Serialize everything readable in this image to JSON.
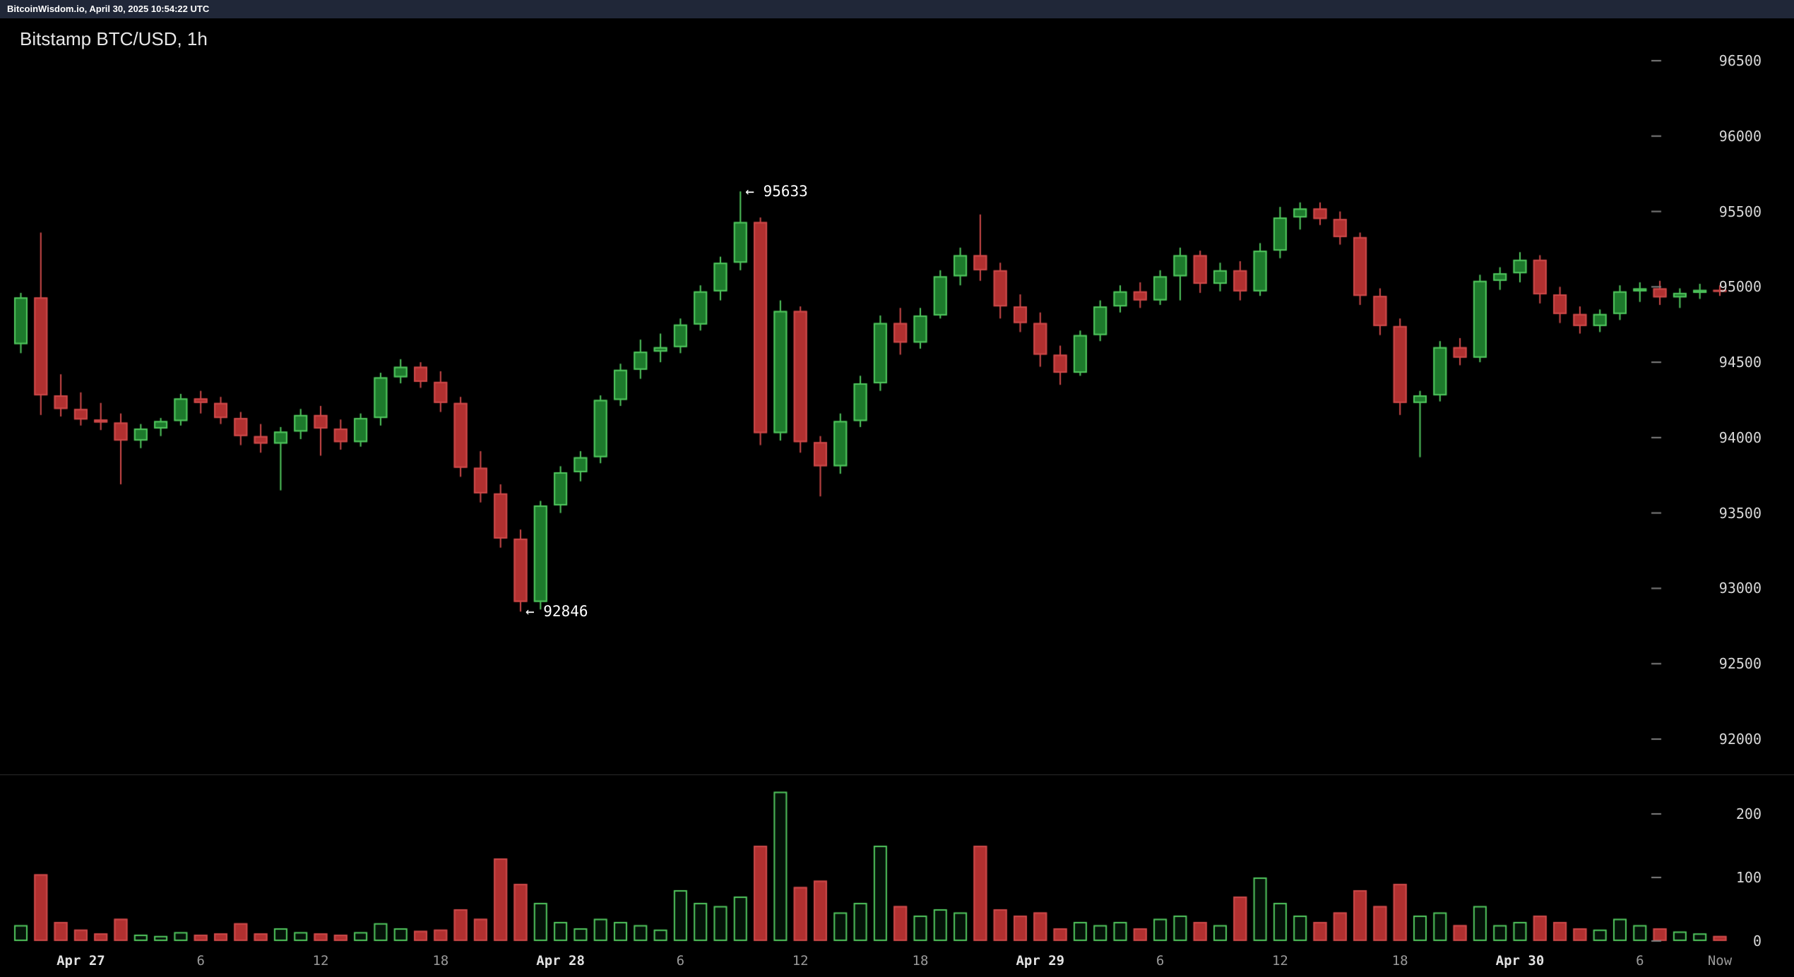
{
  "header": {
    "topbar_text": "BitcoinWisdom.io, April 30, 2025 10:54:22 UTC"
  },
  "chart": {
    "title": "Bitstamp BTC/USD, 1h",
    "now_label": "Now"
  },
  "colors": {
    "background": "#000000",
    "topbar_bg": "#202738",
    "up_border": "#52c95f",
    "up_fill": "#1d7a2c",
    "down_border": "#cf4a4a",
    "down_fill": "#b13030",
    "vol_up_fill": "#041208",
    "tick_dash": "#808080",
    "divider": "#2e2e2e",
    "axis_text": "#d8d8d8",
    "annotation_text": "#ffffff"
  },
  "chart_data": {
    "type": "candlestick",
    "exchange": "Bitstamp",
    "pair": "BTC/USD",
    "interval": "1h",
    "price_axis_ticks": [
      96500,
      96000,
      95500,
      95000,
      94500,
      94000,
      93500,
      93000,
      92500,
      92000
    ],
    "volume_axis_ticks": [
      200,
      100,
      0
    ],
    "x_axis_ticks": [
      {
        "i": 3,
        "label": "Apr 27",
        "kind": "date"
      },
      {
        "i": 9,
        "label": "6",
        "kind": "hour"
      },
      {
        "i": 15,
        "label": "12",
        "kind": "hour"
      },
      {
        "i": 21,
        "label": "18",
        "kind": "hour"
      },
      {
        "i": 27,
        "label": "Apr 28",
        "kind": "date"
      },
      {
        "i": 33,
        "label": "6",
        "kind": "hour"
      },
      {
        "i": 39,
        "label": "12",
        "kind": "hour"
      },
      {
        "i": 45,
        "label": "18",
        "kind": "hour"
      },
      {
        "i": 51,
        "label": "Apr 29",
        "kind": "date"
      },
      {
        "i": 57,
        "label": "6",
        "kind": "hour"
      },
      {
        "i": 63,
        "label": "12",
        "kind": "hour"
      },
      {
        "i": 69,
        "label": "18",
        "kind": "hour"
      },
      {
        "i": 75,
        "label": "Apr 30",
        "kind": "date"
      },
      {
        "i": 81,
        "label": "6",
        "kind": "hour"
      }
    ],
    "annotations": [
      {
        "i": 36,
        "price": 95633,
        "text": "← 95633"
      },
      {
        "i": 25,
        "price": 92846,
        "text": "← 92846"
      }
    ],
    "columns": [
      "time",
      "open",
      "high",
      "low",
      "close",
      "volume"
    ],
    "candles": [
      [
        "04-26 21",
        94620,
        94960,
        94560,
        94930,
        25
      ],
      [
        "04-26 22",
        94930,
        95360,
        94150,
        94280,
        105
      ],
      [
        "04-26 23",
        94280,
        94420,
        94140,
        94190,
        30
      ],
      [
        "04-27 00",
        94190,
        94300,
        94080,
        94120,
        18
      ],
      [
        "04-27 01",
        94120,
        94230,
        94050,
        94100,
        12
      ],
      [
        "04-27 02",
        94100,
        94160,
        93690,
        93980,
        35
      ],
      [
        "04-27 03",
        93980,
        94090,
        93930,
        94060,
        10
      ],
      [
        "04-27 04",
        94060,
        94130,
        94010,
        94110,
        8
      ],
      [
        "04-27 05",
        94110,
        94290,
        94080,
        94260,
        14
      ],
      [
        "04-27 06",
        94260,
        94310,
        94160,
        94230,
        10
      ],
      [
        "04-27 07",
        94230,
        94270,
        94090,
        94130,
        12
      ],
      [
        "04-27 08",
        94130,
        94170,
        93950,
        94010,
        28
      ],
      [
        "04-27 09",
        94010,
        94090,
        93900,
        93960,
        12
      ],
      [
        "04-27 10",
        93960,
        94070,
        93650,
        94040,
        20
      ],
      [
        "04-27 11",
        94040,
        94190,
        93990,
        94150,
        14
      ],
      [
        "04-27 12",
        94150,
        94210,
        93880,
        94060,
        12
      ],
      [
        "04-27 13",
        94060,
        94120,
        93920,
        93970,
        10
      ],
      [
        "04-27 14",
        93970,
        94160,
        93940,
        94130,
        14
      ],
      [
        "04-27 15",
        94130,
        94430,
        94080,
        94400,
        28
      ],
      [
        "04-27 16",
        94400,
        94520,
        94360,
        94470,
        20
      ],
      [
        "04-27 17",
        94470,
        94500,
        94330,
        94370,
        16
      ],
      [
        "04-27 18",
        94370,
        94440,
        94170,
        94230,
        18
      ],
      [
        "04-27 19",
        94230,
        94270,
        93740,
        93800,
        50
      ],
      [
        "04-27 20",
        93800,
        93910,
        93570,
        93630,
        35
      ],
      [
        "04-27 21",
        93630,
        93690,
        93270,
        93330,
        130
      ],
      [
        "04-27 22",
        93330,
        93390,
        92846,
        92910,
        90
      ],
      [
        "04-27 23",
        92910,
        93580,
        92860,
        93550,
        60
      ],
      [
        "04-28 00",
        93550,
        93810,
        93500,
        93770,
        30
      ],
      [
        "04-28 01",
        93770,
        93910,
        93710,
        93870,
        20
      ],
      [
        "04-28 02",
        93870,
        94280,
        93830,
        94250,
        35
      ],
      [
        "04-28 03",
        94250,
        94490,
        94210,
        94450,
        30
      ],
      [
        "04-28 04",
        94450,
        94650,
        94390,
        94570,
        25
      ],
      [
        "04-28 05",
        94570,
        94690,
        94500,
        94600,
        18
      ],
      [
        "04-28 06",
        94600,
        94790,
        94560,
        94750,
        80
      ],
      [
        "04-28 07",
        94750,
        95010,
        94710,
        94970,
        60
      ],
      [
        "04-28 08",
        94970,
        95200,
        94910,
        95160,
        55
      ],
      [
        "04-28 09",
        95160,
        95633,
        95110,
        95430,
        70
      ],
      [
        "04-28 10",
        95430,
        95460,
        93950,
        94030,
        150
      ],
      [
        "04-28 11",
        94030,
        94910,
        93980,
        94840,
        235
      ],
      [
        "04-28 12",
        94840,
        94870,
        93900,
        93970,
        85
      ],
      [
        "04-28 13",
        93970,
        94010,
        93610,
        93810,
        95
      ],
      [
        "04-28 14",
        93810,
        94160,
        93760,
        94110,
        45
      ],
      [
        "04-28 15",
        94110,
        94410,
        94070,
        94360,
        60
      ],
      [
        "04-28 16",
        94360,
        94810,
        94310,
        94760,
        150
      ],
      [
        "04-28 17",
        94760,
        94860,
        94550,
        94630,
        55
      ],
      [
        "04-28 18",
        94630,
        94860,
        94590,
        94810,
        40
      ],
      [
        "04-28 19",
        94810,
        95110,
        94790,
        95070,
        50
      ],
      [
        "04-28 20",
        95070,
        95260,
        95010,
        95210,
        45
      ],
      [
        "04-28 21",
        95210,
        95480,
        95040,
        95110,
        150
      ],
      [
        "04-28 22",
        95110,
        95160,
        94790,
        94870,
        50
      ],
      [
        "04-28 23",
        94870,
        94950,
        94700,
        94760,
        40
      ],
      [
        "04-29 00",
        94760,
        94830,
        94470,
        94550,
        45
      ],
      [
        "04-29 01",
        94550,
        94610,
        94350,
        94430,
        20
      ],
      [
        "04-29 02",
        94430,
        94710,
        94410,
        94680,
        30
      ],
      [
        "04-29 03",
        94680,
        94910,
        94640,
        94870,
        25
      ],
      [
        "04-29 04",
        94870,
        95010,
        94830,
        94970,
        30
      ],
      [
        "04-29 05",
        94970,
        95030,
        94860,
        94910,
        20
      ],
      [
        "04-29 06",
        94910,
        95110,
        94880,
        95070,
        35
      ],
      [
        "04-29 07",
        95070,
        95260,
        94910,
        95210,
        40
      ],
      [
        "04-29 08",
        95210,
        95240,
        94960,
        95020,
        30
      ],
      [
        "04-29 09",
        95020,
        95160,
        94970,
        95110,
        25
      ],
      [
        "04-29 10",
        95110,
        95170,
        94910,
        94970,
        70
      ],
      [
        "04-29 11",
        94970,
        95290,
        94940,
        95240,
        100
      ],
      [
        "04-29 12",
        95240,
        95530,
        95190,
        95460,
        60
      ],
      [
        "04-29 13",
        95460,
        95560,
        95380,
        95520,
        40
      ],
      [
        "04-29 14",
        95520,
        95560,
        95410,
        95450,
        30
      ],
      [
        "04-29 15",
        95450,
        95500,
        95280,
        95330,
        45
      ],
      [
        "04-29 16",
        95330,
        95360,
        94880,
        94940,
        80
      ],
      [
        "04-29 17",
        94940,
        94990,
        94680,
        94740,
        55
      ],
      [
        "04-29 18",
        94740,
        94790,
        94150,
        94230,
        90
      ],
      [
        "04-29 19",
        94230,
        94310,
        93870,
        94280,
        40
      ],
      [
        "04-29 20",
        94280,
        94640,
        94240,
        94600,
        45
      ],
      [
        "04-29 21",
        94600,
        94660,
        94480,
        94530,
        25
      ],
      [
        "04-29 22",
        94530,
        95080,
        94500,
        95040,
        55
      ],
      [
        "04-29 23",
        95040,
        95130,
        94980,
        95090,
        25
      ],
      [
        "04-30 00",
        95090,
        95230,
        95030,
        95180,
        30
      ],
      [
        "04-30 01",
        95180,
        95210,
        94890,
        94950,
        40
      ],
      [
        "04-30 02",
        94950,
        95000,
        94760,
        94820,
        30
      ],
      [
        "04-30 03",
        94820,
        94870,
        94690,
        94740,
        20
      ],
      [
        "04-30 04",
        94740,
        94850,
        94700,
        94820,
        18
      ],
      [
        "04-30 05",
        94820,
        95010,
        94780,
        94970,
        35
      ],
      [
        "04-30 06",
        94970,
        95030,
        94900,
        94990,
        25
      ],
      [
        "04-30 07",
        94990,
        95040,
        94880,
        94930,
        20
      ],
      [
        "04-30 08",
        94930,
        94990,
        94860,
        94960,
        15
      ],
      [
        "04-30 09",
        94960,
        95020,
        94920,
        94980,
        12
      ],
      [
        "04-30 10",
        94980,
        95010,
        94940,
        94970,
        8
      ]
    ]
  }
}
